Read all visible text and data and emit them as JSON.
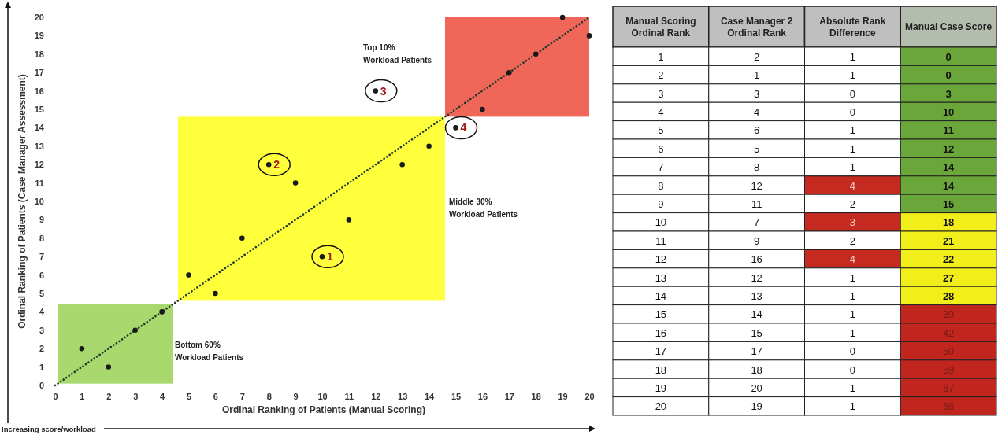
{
  "chart_data": [
    {
      "type": "scatter",
      "xlabel": "Ordinal Ranking of Patients (Manual Scoring)",
      "ylabel": "Ordinal Ranking of Patients (Case Manager Assessment)",
      "xlim": [
        0,
        20
      ],
      "ylim": [
        0,
        20
      ],
      "xticks": [
        0,
        1,
        2,
        3,
        4,
        5,
        6,
        7,
        8,
        9,
        10,
        11,
        12,
        13,
        14,
        15,
        16,
        17,
        18,
        19,
        20
      ],
      "yticks": [
        0,
        1,
        2,
        3,
        4,
        5,
        6,
        7,
        8,
        9,
        10,
        11,
        12,
        13,
        14,
        15,
        16,
        17,
        18,
        19,
        20
      ],
      "grid": false,
      "series": [
        {
          "type": "line",
          "color": "#1e3a28",
          "line_style": "dotted",
          "marker": "none",
          "x": [
            0,
            20
          ],
          "values": [
            0,
            20
          ]
        },
        {
          "type": "scatter",
          "color": "#1a1a1a",
          "marker": "circle",
          "x": [
            1,
            2,
            3,
            4,
            5,
            6,
            7,
            8,
            9,
            10,
            11,
            12,
            13,
            14,
            15,
            16,
            17,
            18,
            19,
            20
          ],
          "values": [
            2,
            1,
            3,
            4,
            6,
            5,
            8,
            12,
            11,
            7,
            9,
            16,
            12,
            13,
            14,
            15,
            17,
            18,
            20,
            19
          ]
        }
      ],
      "bands": [
        {
          "axis": "x",
          "from": 0.1,
          "to": 4.4,
          "label": "Bottom 60%\nWorkload Patients",
          "color": "#a9d86e"
        },
        {
          "axis": "x",
          "from": 4.6,
          "to": 14.6,
          "label": "Middle 30%\nWorkload Patients",
          "color": "#ffff3c"
        },
        {
          "axis": "x",
          "from": 14.6,
          "to": 20,
          "label": "Top 10%\nWorkload Patients",
          "color": "#f0675a"
        }
      ],
      "annotations": [
        {
          "text": "1",
          "x": 10,
          "y": 7
        },
        {
          "text": "2",
          "x": 8,
          "y": 12
        },
        {
          "text": "3",
          "x": 12,
          "y": 16
        },
        {
          "text": "4",
          "x": 15,
          "y": 14
        },
        "Increasing score/workload"
      ]
    },
    {
      "type": "heatmap",
      "categories": [
        "Manual Scoring Ordinal Rank",
        "Case Manager 2 Ordinal Rank",
        "Absolute Rank Difference",
        "Manual Case Score"
      ],
      "y_categories": [
        null,
        null,
        null,
        null,
        null,
        null,
        null,
        null,
        null,
        null,
        null,
        null,
        null,
        null,
        null,
        null,
        null,
        null,
        null,
        null
      ],
      "data_labels": true,
      "cells": [
        [
          1,
          2,
          1,
          0
        ],
        [
          2,
          1,
          1,
          0
        ],
        [
          3,
          3,
          0,
          3
        ],
        [
          4,
          4,
          0,
          10
        ],
        [
          5,
          6,
          1,
          11
        ],
        [
          6,
          5,
          1,
          12
        ],
        [
          7,
          8,
          1,
          14
        ],
        [
          8,
          12,
          4,
          14
        ],
        [
          9,
          11,
          2,
          15
        ],
        [
          10,
          7,
          3,
          18
        ],
        [
          11,
          9,
          2,
          21
        ],
        [
          12,
          16,
          4,
          22
        ],
        [
          13,
          12,
          1,
          27
        ],
        [
          14,
          13,
          1,
          28
        ],
        [
          15,
          14,
          1,
          39
        ],
        [
          16,
          15,
          1,
          42
        ],
        [
          17,
          17,
          0,
          50
        ],
        [
          18,
          18,
          0,
          59
        ],
        [
          19,
          20,
          1,
          67
        ],
        [
          20,
          19,
          1,
          68
        ]
      ],
      "colors": [
        [
          null,
          null,
          null,
          "#6aa63a"
        ],
        [
          null,
          null,
          null,
          "#6aa63a"
        ],
        [
          null,
          null,
          null,
          "#6aa63a"
        ],
        [
          null,
          null,
          null,
          "#6aa63a"
        ],
        [
          null,
          null,
          null,
          "#6aa63a"
        ],
        [
          null,
          null,
          null,
          "#6aa63a"
        ],
        [
          null,
          null,
          null,
          "#6aa63a"
        ],
        [
          null,
          null,
          "#c52a20",
          "#6aa63a"
        ],
        [
          null,
          null,
          null,
          "#6aa63a"
        ],
        [
          null,
          null,
          "#c52a20",
          "#f2ee1a"
        ],
        [
          null,
          null,
          null,
          "#f2ee1a"
        ],
        [
          null,
          null,
          "#c52a20",
          "#f2ee1a"
        ],
        [
          null,
          null,
          null,
          "#f2ee1a"
        ],
        [
          null,
          null,
          null,
          "#f2ee1a"
        ],
        [
          null,
          null,
          null,
          "#c0261e"
        ],
        [
          null,
          null,
          null,
          "#c0261e"
        ],
        [
          null,
          null,
          null,
          "#c0261e"
        ],
        [
          null,
          null,
          null,
          "#c0261e"
        ],
        [
          null,
          null,
          null,
          "#c0261e"
        ],
        [
          null,
          null,
          null,
          "#c0261e"
        ]
      ]
    }
  ]
}
